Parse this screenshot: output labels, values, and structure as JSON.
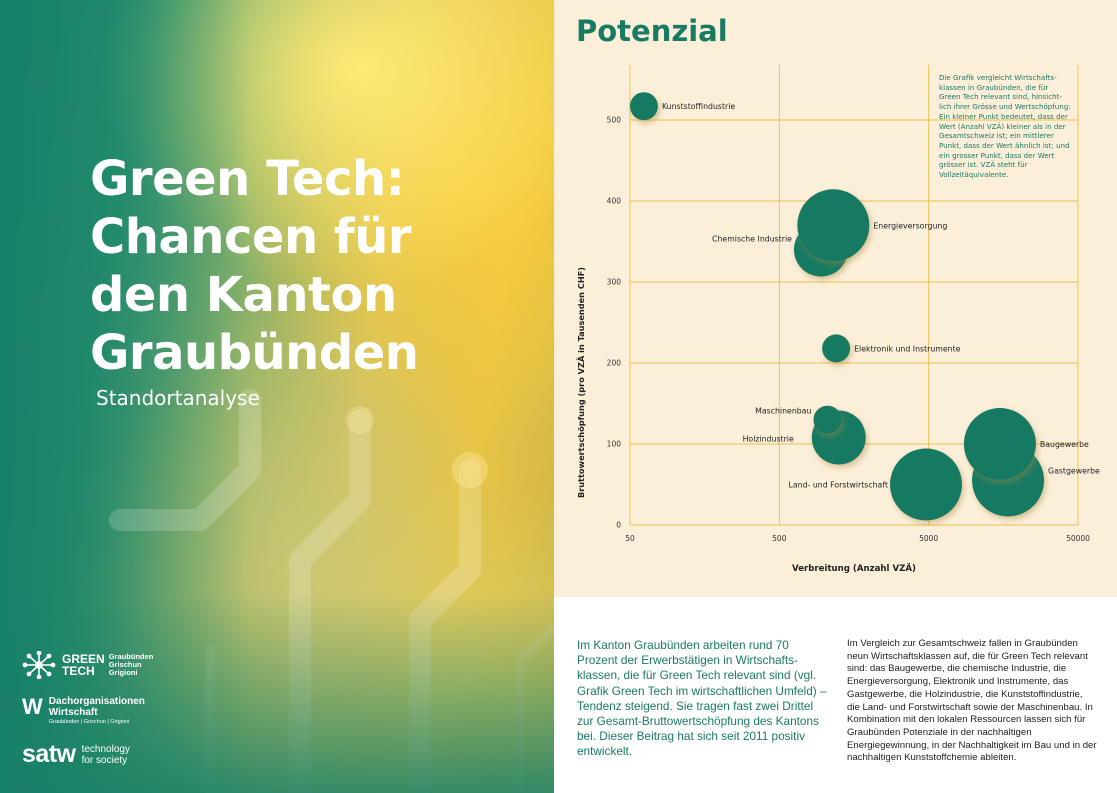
{
  "cover": {
    "title_lines": [
      "Green Tech:",
      "Chancen für",
      "den Kanton",
      "Graubünden"
    ],
    "subtitle": "Standortanalyse",
    "logos": {
      "greentech": {
        "main_1": "GREEN",
        "main_2": "TECH",
        "sub_1": "Graubünden",
        "sub_2": "Grischun",
        "sub_3": "Grigioni"
      },
      "dachorganisationen": {
        "mark": "W",
        "main_1": "Dachorganisationen",
        "main_2": "Wirtschaft",
        "sub": "Graubünden | Grischun | Grigioni"
      },
      "satw": {
        "main": "satw",
        "sub_1": "technology",
        "sub_2": "for society"
      }
    }
  },
  "page": {
    "heading": "Potenzial",
    "chart_note": "Die Grafik vergleicht Wirtschafts­klassen in Graubünden, die für Green Tech relevant sind, hinsicht­lich ihrer Grösse und Wertschöp­fung: Ein kleiner Punkt bedeutet, dass der Wert (Anzahl VZÄ) kleiner als in der Gesamtschweiz ist; ein mittlerer Punkt, dass der Wert ähnlich ist; und ein grosser Punkt, dass der Wert grösser ist. VZÄ steht für Vollzeitäquivalente.",
    "body_left": "Im Kanton Graubünden arbeiten rund 70 Prozent der Erwerbstätigen in Wirtschafts­klassen, die für Green Tech relevant sind (vgl. Grafik Green Tech im wirtschaftlichen Umfeld) – Tendenz steigend. Sie tragen fast zwei Drittel zur Gesamt-Bruttowert­schöpfung des Kantons bei. Dieser Beitrag hat sich seit 2011 positiv entwickelt.",
    "body_right": "Im Vergleich zur Gesamtschweiz fallen in Graubünden neun Wirtschaftsklassen auf, die für Green Tech relevant sind: das Baugewerbe, die chemische Industrie, die Energieversorgung, Elektronik und Instrumente, das Gastgewerbe, die Holzindustrie, die Kunststoff­industrie, die Land- und Forstwirtschaft sowie der Maschinenbau. In Kombination mit den lokalen Ressour­cen lassen sich für Graubünden Potenziale in der nach­haltigen Energiegewinnung, in der Nachhaltigkeit im Bau und in der nachhaltigen Kunststoffchemie ableiten."
  },
  "chart_data": {
    "type": "scatter",
    "title": "",
    "xlabel": "Verbreitung (Anzahl VZÄ)",
    "ylabel": "Bruttowertschöpfung (pro VZÄ in Tausenden CHF)",
    "x_scale": "log",
    "xlim": [
      50,
      50000
    ],
    "ylim": [
      0,
      500
    ],
    "x_ticks": [
      50,
      500,
      5000,
      50000
    ],
    "x_tick_labels": [
      "50",
      "500",
      "5000",
      "50000"
    ],
    "y_ticks": [
      0,
      100,
      200,
      300,
      400,
      500
    ],
    "y_tick_labels": [
      "0",
      "100",
      "200",
      "300",
      "400",
      "500"
    ],
    "grid": true,
    "size_legend": [
      "small",
      "medium",
      "large"
    ],
    "bubble_color": "#177a63",
    "grid_color": "#e8c04a",
    "points": [
      {
        "label": "Kunststoffindustrie",
        "x": 62,
        "y": 517,
        "size": "small"
      },
      {
        "label": "Energieversorgung",
        "x": 1150,
        "y": 370,
        "size": "large"
      },
      {
        "label": "Chemische Industrie",
        "x": 950,
        "y": 340,
        "size": "medium"
      },
      {
        "label": "Elektronik und Instrumente",
        "x": 1200,
        "y": 218,
        "size": "small"
      },
      {
        "label": "Maschinenbau",
        "x": 1050,
        "y": 130,
        "size": "small"
      },
      {
        "label": "Holzindustrie",
        "x": 1250,
        "y": 108,
        "size": "medium"
      },
      {
        "label": "Baugewerbe",
        "x": 15000,
        "y": 100,
        "size": "large"
      },
      {
        "label": "Gastgewerbe",
        "x": 17000,
        "y": 55,
        "size": "large"
      },
      {
        "label": "Land- und Forstwirtschaft",
        "x": 4800,
        "y": 50,
        "size": "large"
      }
    ]
  }
}
